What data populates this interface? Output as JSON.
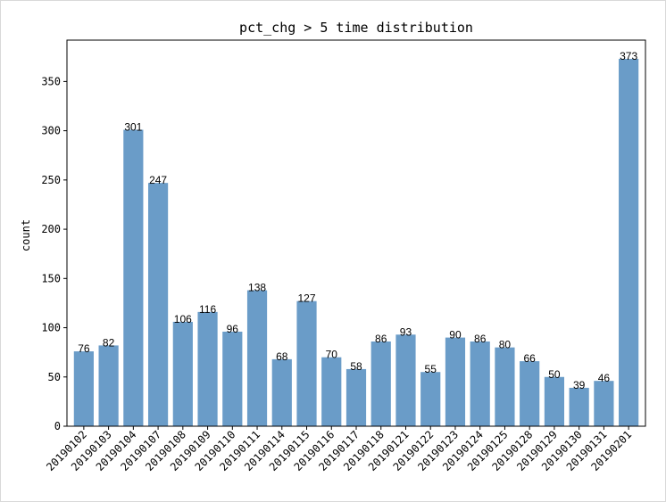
{
  "chart_data": {
    "type": "bar",
    "title": "pct_chg > 5 time distribution",
    "xlabel": "",
    "ylabel": "count",
    "categories": [
      "20190102",
      "20190103",
      "20190104",
      "20190107",
      "20190108",
      "20190109",
      "20190110",
      "20190111",
      "20190114",
      "20190115",
      "20190116",
      "20190117",
      "20190118",
      "20190121",
      "20190122",
      "20190123",
      "20190124",
      "20190125",
      "20190128",
      "20190129",
      "20190130",
      "20190131",
      "20190201"
    ],
    "values": [
      76,
      82,
      301,
      247,
      106,
      116,
      96,
      138,
      68,
      127,
      70,
      58,
      86,
      93,
      55,
      90,
      86,
      80,
      66,
      50,
      39,
      46,
      373
    ],
    "ylim": [
      0,
      392
    ],
    "yticks": [
      0,
      50,
      100,
      150,
      200,
      250,
      300,
      350
    ],
    "bar_color": "#6a9cc8",
    "grid": false,
    "data_labels": true
  }
}
